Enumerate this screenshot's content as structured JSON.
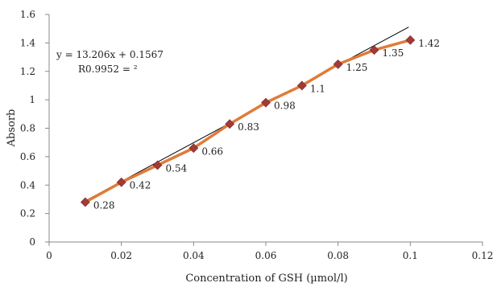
{
  "chart_data": {
    "type": "line",
    "title": "",
    "xlabel": "Concentration of GSH (µmol/l)",
    "ylabel": "Absorb",
    "xlim": [
      0,
      0.12
    ],
    "ylim": [
      0,
      1.6
    ],
    "x_ticks": [
      "0",
      "0.02",
      "0.04",
      "0.06",
      "0.08",
      "0.1",
      "0.12"
    ],
    "y_ticks": [
      "0",
      "0.2",
      "0.4",
      "0.6",
      "0.8",
      "1",
      "1.2",
      "1.4",
      "1.6"
    ],
    "grid": false,
    "series": [
      {
        "x": [
          0.01,
          0.02,
          0.03,
          0.04,
          0.05,
          0.06,
          0.07,
          0.08,
          0.09,
          0.1
        ],
        "values": [
          0.28,
          0.42,
          0.54,
          0.66,
          0.83,
          0.98,
          1.1,
          1.25,
          1.35,
          1.42
        ],
        "data_labels": [
          "0.28",
          "0.42",
          "0.54",
          "0.66",
          "0.83",
          "0.98",
          "1.1",
          "1.25",
          "1.35",
          "1.42"
        ],
        "line_color": "#e07b39",
        "marker_color": "#a33a36",
        "marker": "diamond"
      }
    ],
    "trendline": {
      "type": "linear",
      "slope": 13.206,
      "intercept": 0.1567,
      "x_range": [
        0.01,
        0.1
      ],
      "color": "#000000"
    },
    "annotations": {
      "equation": "y = 13.206x + 0.1567",
      "r_squared": "R0.9952 = ²"
    },
    "colors": {
      "axis": "#888888",
      "text": "#222222"
    }
  }
}
